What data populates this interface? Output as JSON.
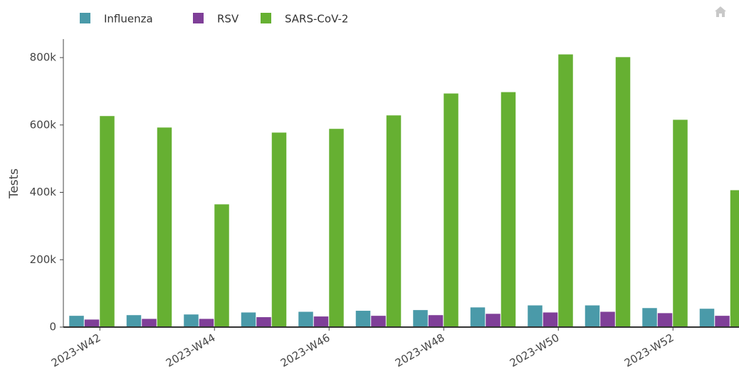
{
  "chart_data": {
    "type": "bar",
    "categories": [
      "2023-W42",
      null,
      "2023-W44",
      null,
      "2023-W46",
      null,
      "2023-W48",
      null,
      "2023-W50",
      null,
      "2023-W52",
      null
    ],
    "series": [
      {
        "name": "Influenza",
        "color": "#4a9aa9",
        "values": [
          34000,
          36000,
          38000,
          44000,
          46000,
          49000,
          51000,
          59000,
          65000,
          65000,
          57000,
          55000
        ]
      },
      {
        "name": "RSV",
        "color": "#7f3f98",
        "values": [
          23000,
          25000,
          25000,
          30000,
          32000,
          34000,
          36000,
          40000,
          44000,
          46000,
          42000,
          34000
        ]
      },
      {
        "name": "SARS-CoV-2",
        "color": "#66b032",
        "values": [
          627000,
          593000,
          365000,
          578000,
          589000,
          629000,
          694000,
          698000,
          810000,
          802000,
          616000,
          407000
        ]
      }
    ],
    "y_label": "Tests",
    "ylim": [
      0,
      800000
    ],
    "yticks": [
      0,
      {
        "value": 200000,
        "label": "200k"
      },
      {
        "value": 400000,
        "label": "400k"
      },
      {
        "value": 600000,
        "label": "600k"
      },
      {
        "value": 800000,
        "label": "800k"
      }
    ],
    "grid": false
  }
}
